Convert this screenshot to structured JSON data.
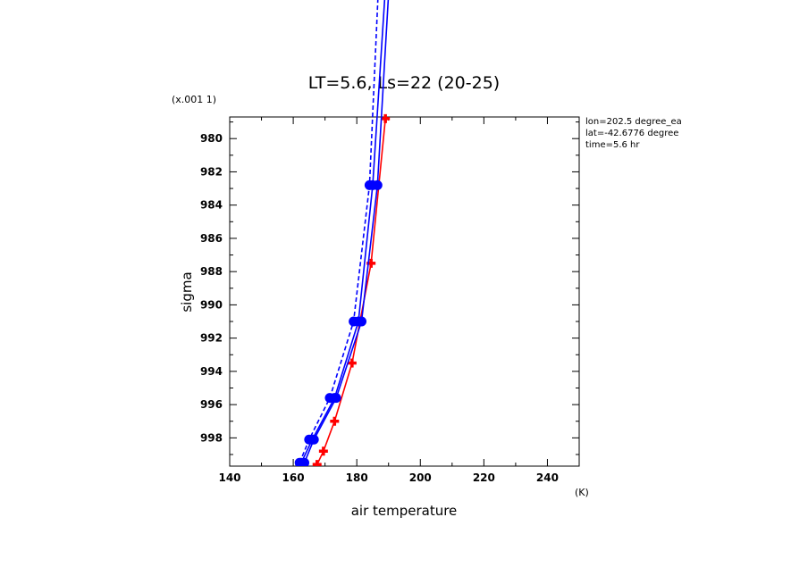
{
  "chart_data": {
    "type": "line",
    "title": "LT=5.6, Ls=22 (20-25)",
    "xlabel": "air temperature",
    "ylabel": "sigma",
    "x_unit": "(K)",
    "y_scale_note": "(x.001 1)",
    "xlim": [
      140,
      250
    ],
    "ylim": [
      999.7,
      978.7
    ],
    "x_ticks": [
      "140",
      "160",
      "180",
      "200",
      "220",
      "240"
    ],
    "y_ticks": [
      "980",
      "982",
      "984",
      "986",
      "988",
      "990",
      "992",
      "994",
      "996",
      "998"
    ],
    "annotations": [
      "lon=202.5 degree_ea",
      "lat=-42.6776 degree",
      "time=5.6 hr"
    ],
    "grid": false,
    "series": [
      {
        "color": "#ff0000",
        "style": "solid",
        "marker": "plus",
        "x": [
          167.5,
          169.5,
          173,
          178.5,
          184.5,
          189
        ],
        "y": [
          999.6,
          998.8,
          997.0,
          993.5,
          987.5,
          978.8
        ]
      },
      {
        "color": "#0000ff",
        "style": "solid",
        "marker": "circle",
        "x": [
          162.5,
          166,
          173,
          180.5,
          185,
          190
        ],
        "y": [
          999.5,
          998.1,
          995.6,
          991.0,
          982.8,
          968
        ]
      },
      {
        "color": "#0000ff",
        "style": "solid",
        "marker": "circle",
        "x": [
          163.5,
          166.5,
          173.5,
          181.5,
          186.5,
          191
        ],
        "y": [
          999.5,
          998.1,
          995.6,
          991.0,
          982.8,
          968
        ]
      },
      {
        "color": "#0000ff",
        "style": "dashed",
        "marker": "circle",
        "x": [
          162,
          165,
          171.5,
          179,
          184,
          187.5
        ],
        "y": [
          999.5,
          998.1,
          995.6,
          991.0,
          982.8,
          968
        ]
      }
    ]
  }
}
